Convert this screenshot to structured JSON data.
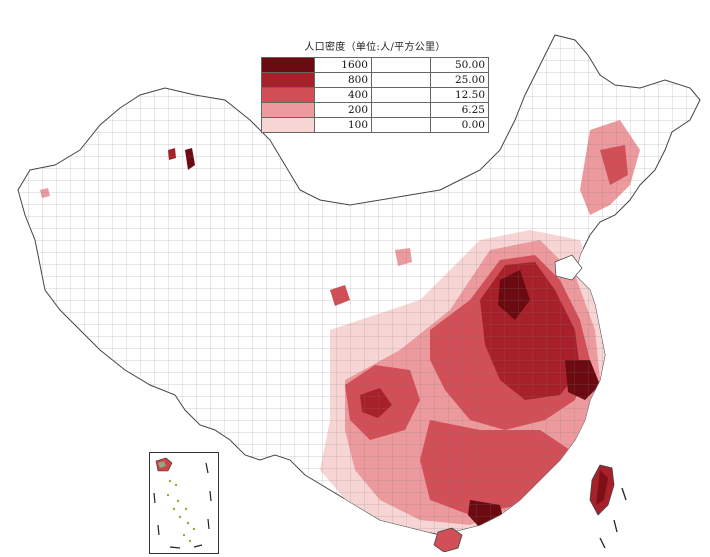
{
  "legend": {
    "title": "人口密度（单位:人/平方公里）",
    "rows": [
      {
        "value": "1600",
        "value2": "50.00",
        "color": "#6b0a10"
      },
      {
        "value": "800",
        "value2": "25.00",
        "color": "#a7202a"
      },
      {
        "value": "400",
        "value2": "12.50",
        "color": "#d24f58"
      },
      {
        "value": "200",
        "value2": "6.25",
        "color": "#ec9a9d"
      },
      {
        "value": "100",
        "value2": "0.00",
        "color": "#f8d5d5"
      }
    ]
  },
  "colors": {
    "border": "#555555",
    "land": "#ffffff",
    "dense": "#6b0a10",
    "high": "#a7202a",
    "mid": "#d24f58",
    "low": "#ec9a9d",
    "verylow": "#f8d5d5"
  }
}
